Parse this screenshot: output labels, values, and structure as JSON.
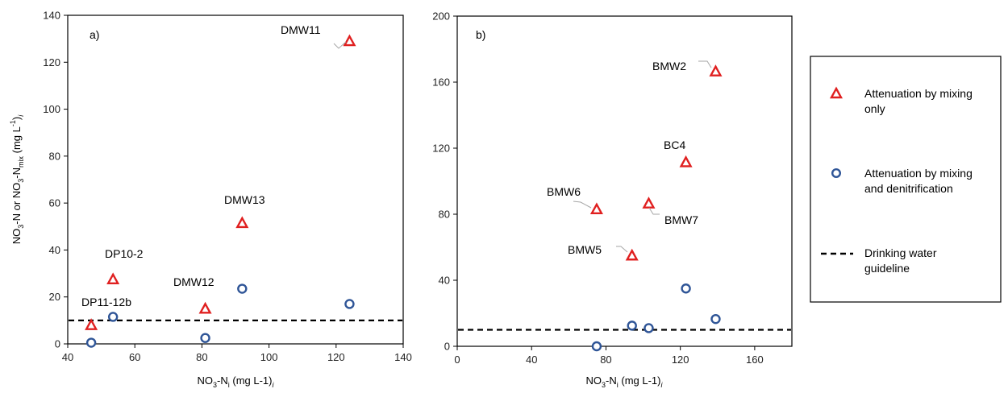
{
  "colors": {
    "mixing_only": "#e02020",
    "mixing_denit": "#2f5597",
    "guideline": "#000000",
    "leader": "#a6a6a6"
  },
  "legend": {
    "items": [
      {
        "marker": "triangle",
        "line1": "Attenuation by mixing",
        "line2": "only"
      },
      {
        "marker": "circle",
        "line1": "Attenuation by mixing",
        "line2": "and denitrification"
      },
      {
        "marker": "dashed",
        "line1": "Drinking water",
        "line2": "guideline"
      }
    ]
  },
  "chart_data": [
    {
      "type": "scatter",
      "panel_label": "a)",
      "xlim": [
        40,
        140
      ],
      "ylim": [
        0,
        140
      ],
      "x_ticks": [
        "40",
        "60",
        "80",
        "100",
        "120",
        "140"
      ],
      "y_ticks": [
        "0",
        "20",
        "40",
        "60",
        "80",
        "100",
        "120",
        "140"
      ],
      "ylabel": {
        "p1": "NO",
        "s1": "3",
        "p2": "-N  or NO",
        "s2": "3",
        "p3": "-N",
        "s3": "mix",
        "p4": " (mg L",
        "sup": "-1",
        "p5": ")",
        "sub_i": "i"
      },
      "xlabel": {
        "p1": "NO",
        "s1": "3",
        "p2": "-N",
        "s2": "i",
        "p3": " (mg L-1)",
        "sub_i": "i"
      },
      "guideline_y": 10,
      "series": [
        {
          "marker": "triangle",
          "points": [
            {
              "x": 47,
              "y": 8,
              "label": "DP11-12b"
            },
            {
              "x": 53.5,
              "y": 27.5,
              "label": "DP10-2"
            },
            {
              "x": 81,
              "y": 15,
              "label": "DMW12"
            },
            {
              "x": 92,
              "y": 51.5,
              "label": "DMW13"
            },
            {
              "x": 124,
              "y": 129,
              "label": "DMW11"
            }
          ]
        },
        {
          "marker": "circle",
          "points": [
            {
              "x": 47,
              "y": 0.5
            },
            {
              "x": 53.5,
              "y": 11.5
            },
            {
              "x": 81,
              "y": 2.5
            },
            {
              "x": 92,
              "y": 23.5
            },
            {
              "x": 124,
              "y": 17
            }
          ]
        }
      ]
    },
    {
      "type": "scatter",
      "panel_label": "b)",
      "xlim": [
        0,
        180
      ],
      "ylim": [
        0,
        200
      ],
      "x_ticks": [
        "0",
        "40",
        "80",
        "120",
        "160"
      ],
      "y_ticks": [
        "0",
        "40",
        "80",
        "120",
        "160",
        "200"
      ],
      "xlabel": {
        "p1": "NO",
        "s1": "3",
        "p2": "-N",
        "s2": "i",
        "p3": " (mg L-1)",
        "sub_i": "i"
      },
      "guideline_y": 10,
      "series": [
        {
          "marker": "triangle",
          "points": [
            {
              "x": 75,
              "y": 83,
              "label": "BMW6"
            },
            {
              "x": 94,
              "y": 55,
              "label": "BMW5"
            },
            {
              "x": 103,
              "y": 86.5,
              "label": "BMW7"
            },
            {
              "x": 123,
              "y": 111.5,
              "label": "BC4"
            },
            {
              "x": 139,
              "y": 166.5,
              "label": "BMW2"
            }
          ]
        },
        {
          "marker": "circle",
          "points": [
            {
              "x": 75,
              "y": 0
            },
            {
              "x": 94,
              "y": 12.5
            },
            {
              "x": 103,
              "y": 11
            },
            {
              "x": 123,
              "y": 35
            },
            {
              "x": 139,
              "y": 16.5
            }
          ]
        }
      ]
    }
  ]
}
